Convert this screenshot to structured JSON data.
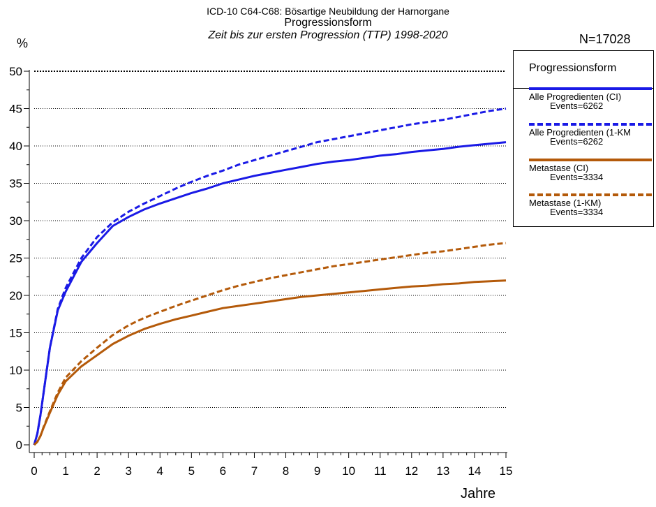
{
  "title_line1": "ICD-10 C64-C68: Bösartige Neubildung der Harnorgane",
  "title_line2": "Progressionsform",
  "title_line3": "Zeit bis zur ersten Progression (TTP) 1998-2020",
  "y_unit": "%",
  "n_total": "N=17028",
  "chart_data": {
    "type": "line",
    "title": "ICD-10 C64-C68: Bösartige Neubildung der Harnorgane",
    "subtitle": "Progressionsform — Zeit bis zur ersten Progression (TTP) 1998-2020",
    "xlabel": "Jahre",
    "ylabel": "%",
    "xlim": [
      0,
      15
    ],
    "ylim": [
      0,
      50
    ],
    "x_ticks": [
      "0",
      "1",
      "2",
      "3",
      "4",
      "5",
      "6",
      "7",
      "8",
      "9",
      "10",
      "11",
      "12",
      "13",
      "14",
      "15"
    ],
    "y_ticks": [
      "0",
      "5",
      "10",
      "15",
      "20",
      "25",
      "30",
      "35",
      "40",
      "45",
      "50"
    ],
    "grid": "horizontal dotted",
    "legend_position": "right",
    "legend_title": "Progressionsform",
    "series": [
      {
        "name": "Alle Progredienten (CI)",
        "events": "Events=6262",
        "color": "#1a1ae6",
        "dash": "solid",
        "x": [
          0,
          0.1,
          0.2,
          0.3,
          0.5,
          0.75,
          1,
          1.5,
          2,
          2.5,
          3,
          3.5,
          4,
          4.5,
          5,
          5.5,
          6,
          6.5,
          7,
          7.5,
          8,
          8.5,
          9,
          9.5,
          10,
          10.5,
          11,
          11.5,
          12,
          12.5,
          13,
          13.5,
          14,
          14.5,
          15
        ],
        "y": [
          0,
          1.5,
          4,
          7,
          13,
          18,
          20.5,
          24.5,
          27,
          29.3,
          30.5,
          31.5,
          32.3,
          33,
          33.7,
          34.3,
          35,
          35.5,
          36,
          36.4,
          36.8,
          37.2,
          37.6,
          37.9,
          38.1,
          38.4,
          38.7,
          38.9,
          39.2,
          39.4,
          39.6,
          39.9,
          40.1,
          40.3,
          40.5
        ]
      },
      {
        "name": "Alle Progredienten (1-KM",
        "events": "Events=6262",
        "color": "#1a1ae6",
        "dash": "dashed",
        "x": [
          0,
          0.1,
          0.2,
          0.3,
          0.5,
          0.75,
          1,
          1.5,
          2,
          2.5,
          3,
          3.5,
          4,
          4.5,
          5,
          5.5,
          6,
          6.5,
          7,
          7.5,
          8,
          8.5,
          9,
          9.5,
          10,
          10.5,
          11,
          11.5,
          12,
          12.5,
          13,
          13.5,
          14,
          14.5,
          15
        ],
        "y": [
          0,
          1.5,
          4,
          7,
          13,
          18.2,
          21,
          25,
          27.8,
          29.8,
          31.2,
          32.3,
          33.3,
          34.3,
          35.2,
          36,
          36.7,
          37.5,
          38.1,
          38.7,
          39.3,
          39.9,
          40.5,
          40.9,
          41.3,
          41.7,
          42.1,
          42.5,
          42.9,
          43.2,
          43.5,
          43.9,
          44.3,
          44.7,
          45
        ]
      },
      {
        "name": "Metastase (CI)",
        "events": "Events=3334",
        "color": "#b45a0a",
        "dash": "solid",
        "x": [
          0,
          0.1,
          0.2,
          0.3,
          0.5,
          0.75,
          1,
          1.5,
          2,
          2.5,
          3,
          3.5,
          4,
          4.5,
          5,
          5.5,
          6,
          6.5,
          7,
          7.5,
          8,
          8.5,
          9,
          9.5,
          10,
          10.5,
          11,
          11.5,
          12,
          12.5,
          13,
          13.5,
          14,
          14.5,
          15
        ],
        "y": [
          0,
          0.4,
          1.2,
          2.3,
          4.3,
          6.7,
          8.5,
          10.5,
          12,
          13.5,
          14.6,
          15.5,
          16.2,
          16.8,
          17.3,
          17.8,
          18.3,
          18.6,
          18.9,
          19.2,
          19.5,
          19.8,
          20,
          20.2,
          20.4,
          20.6,
          20.8,
          21,
          21.2,
          21.3,
          21.5,
          21.6,
          21.8,
          21.9,
          22
        ]
      },
      {
        "name": "Metastase (1-KM)",
        "events": "Events=3334",
        "color": "#b45a0a",
        "dash": "dashed",
        "x": [
          0,
          0.1,
          0.2,
          0.3,
          0.5,
          0.75,
          1,
          1.5,
          2,
          2.5,
          3,
          3.5,
          4,
          4.5,
          5,
          5.5,
          6,
          6.5,
          7,
          7.5,
          8,
          8.5,
          9,
          9.5,
          10,
          10.5,
          11,
          11.5,
          12,
          12.5,
          13,
          13.5,
          14,
          14.5,
          15
        ],
        "y": [
          0,
          0.4,
          1.2,
          2.4,
          4.5,
          7,
          9,
          11.2,
          13,
          14.7,
          16,
          17,
          17.8,
          18.6,
          19.3,
          20,
          20.7,
          21.3,
          21.8,
          22.3,
          22.7,
          23.1,
          23.5,
          23.9,
          24.2,
          24.5,
          24.8,
          25.1,
          25.4,
          25.7,
          25.9,
          26.2,
          26.5,
          26.8,
          27
        ]
      }
    ]
  }
}
